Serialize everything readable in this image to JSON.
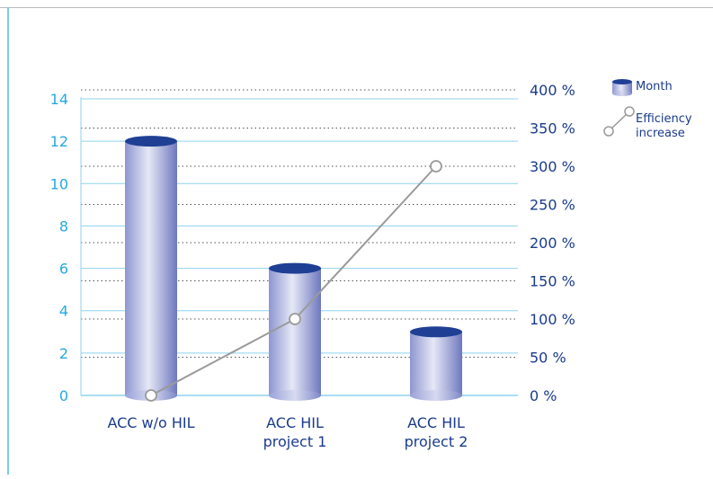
{
  "chart_data": {
    "type": "bar",
    "categories": [
      "ACC w/o HIL",
      "ACC HIL project 1",
      "ACC HIL project 2"
    ],
    "category_lines": [
      [
        "ACC w/o HIL"
      ],
      [
        "ACC HIL",
        "project 1"
      ],
      [
        "ACC HIL",
        "project 2"
      ]
    ],
    "series": [
      {
        "name": "Month",
        "type": "bar",
        "axis": "left",
        "values": [
          12,
          6,
          3
        ]
      },
      {
        "name": "Efficiency increase",
        "type": "line",
        "axis": "right",
        "values": [
          0,
          100,
          300
        ]
      }
    ],
    "legend_labels": [
      [
        "Month"
      ],
      [
        "Efficiency",
        "increase"
      ]
    ],
    "y_left": {
      "ylim": [
        0,
        14
      ],
      "ticks": [
        "0",
        "2",
        "4",
        "6",
        "8",
        "10",
        "12",
        "14"
      ]
    },
    "y_right": {
      "ylim": [
        0,
        400
      ],
      "ticks": [
        "0 %",
        "50 %",
        "100 %",
        "150 %",
        "200 %",
        "250 %",
        "300 %",
        "350 %",
        "400 %"
      ]
    },
    "legend_position": "top-right",
    "colors": {
      "axis_left": "#25a9e0",
      "text": "#1a3b8c",
      "bar_top": "#1f3f95",
      "line": "#9a9a9a",
      "grid_solid": "#8ed3ee",
      "grid_dotted": "#555555"
    }
  }
}
